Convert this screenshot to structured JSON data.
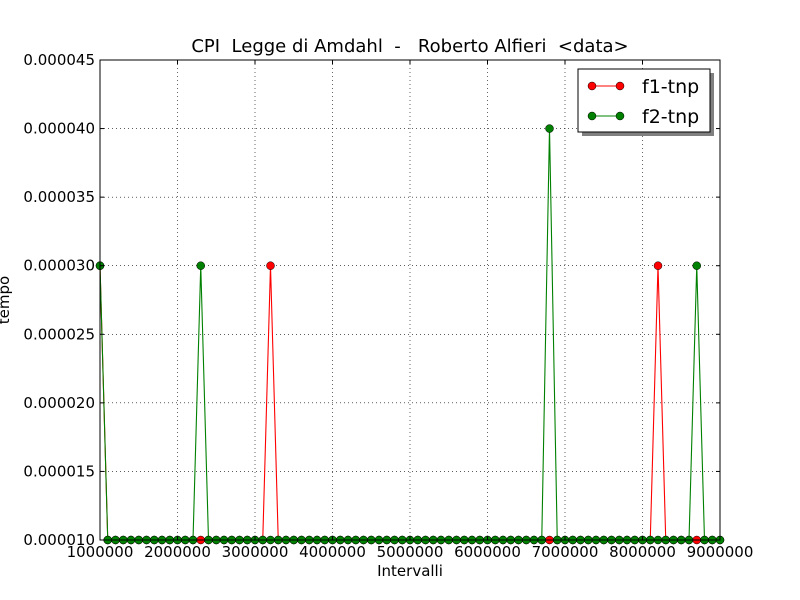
{
  "chart_data": {
    "type": "line",
    "title": "CPI  Legge di Amdahl  -   Roberto Alfieri  <data>",
    "xlabel": "Intervalli",
    "ylabel": "tempo",
    "xlim": [
      1000000,
      9000000
    ],
    "ylim": [
      1e-05,
      4.5e-05
    ],
    "xticks": [
      1000000,
      2000000,
      3000000,
      4000000,
      5000000,
      6000000,
      7000000,
      8000000,
      9000000
    ],
    "xtick_labels": [
      "1000000",
      "2000000",
      "3000000",
      "4000000",
      "5000000",
      "6000000",
      "7000000",
      "8000000",
      "9000000"
    ],
    "yticks": [
      1e-05,
      1.5e-05,
      2e-05,
      2.5e-05,
      3e-05,
      3.5e-05,
      4e-05,
      4.5e-05
    ],
    "ytick_labels": [
      "0.000010",
      "0.000015",
      "0.000020",
      "0.000025",
      "0.000030",
      "0.000035",
      "0.000040",
      "0.000045"
    ],
    "grid": true,
    "legend_position": "top-right",
    "x": [
      1000000,
      1100000,
      1200000,
      1300000,
      1400000,
      1500000,
      1600000,
      1700000,
      1800000,
      1900000,
      2000000,
      2100000,
      2200000,
      2300000,
      2400000,
      2500000,
      2600000,
      2700000,
      2800000,
      2900000,
      3000000,
      3100000,
      3200000,
      3300000,
      3400000,
      3500000,
      3600000,
      3700000,
      3800000,
      3900000,
      4000000,
      4100000,
      4200000,
      4300000,
      4400000,
      4500000,
      4600000,
      4700000,
      4800000,
      4900000,
      5000000,
      5100000,
      5200000,
      5300000,
      5400000,
      5500000,
      5600000,
      5700000,
      5800000,
      5900000,
      6000000,
      6100000,
      6200000,
      6300000,
      6400000,
      6500000,
      6600000,
      6700000,
      6800000,
      6900000,
      7000000,
      7100000,
      7200000,
      7300000,
      7400000,
      7500000,
      7600000,
      7700000,
      7800000,
      7900000,
      8000000,
      8100000,
      8200000,
      8300000,
      8400000,
      8500000,
      8600000,
      8700000,
      8800000,
      8900000,
      9000000
    ],
    "series": [
      {
        "name": "f1-tnp",
        "color": "#ff0000",
        "values": [
          3e-05,
          1e-05,
          1e-05,
          1e-05,
          1e-05,
          1e-05,
          1e-05,
          1e-05,
          1e-05,
          1e-05,
          1e-05,
          1e-05,
          1e-05,
          1e-05,
          1e-05,
          1e-05,
          1e-05,
          1e-05,
          1e-05,
          1e-05,
          1e-05,
          1e-05,
          3e-05,
          1e-05,
          1e-05,
          1e-05,
          1e-05,
          1e-05,
          1e-05,
          1e-05,
          1e-05,
          1e-05,
          1e-05,
          1e-05,
          1e-05,
          1e-05,
          1e-05,
          1e-05,
          1e-05,
          1e-05,
          1e-05,
          1e-05,
          1e-05,
          1e-05,
          1e-05,
          1e-05,
          1e-05,
          1e-05,
          1e-05,
          1e-05,
          1e-05,
          1e-05,
          1e-05,
          1e-05,
          1e-05,
          1e-05,
          1e-05,
          1e-05,
          1e-05,
          1e-05,
          1e-05,
          1e-05,
          1e-05,
          1e-05,
          1e-05,
          1e-05,
          1e-05,
          1e-05,
          1e-05,
          1e-05,
          1e-05,
          1e-05,
          3e-05,
          1e-05,
          1e-05,
          1e-05,
          1e-05,
          1e-05,
          1e-05,
          1e-05,
          1e-05
        ]
      },
      {
        "name": "f2-tnp",
        "color": "#008000",
        "values": [
          3e-05,
          1e-05,
          1e-05,
          1e-05,
          1e-05,
          1e-05,
          1e-05,
          1e-05,
          1e-05,
          1e-05,
          1e-05,
          1e-05,
          1e-05,
          3e-05,
          1e-05,
          1e-05,
          1e-05,
          1e-05,
          1e-05,
          1e-05,
          1e-05,
          1e-05,
          1e-05,
          1e-05,
          1e-05,
          1e-05,
          1e-05,
          1e-05,
          1e-05,
          1e-05,
          1e-05,
          1e-05,
          1e-05,
          1e-05,
          1e-05,
          1e-05,
          1e-05,
          1e-05,
          1e-05,
          1e-05,
          1e-05,
          1e-05,
          1e-05,
          1e-05,
          1e-05,
          1e-05,
          1e-05,
          1e-05,
          1e-05,
          1e-05,
          1e-05,
          1e-05,
          1e-05,
          1e-05,
          1e-05,
          1e-05,
          1e-05,
          1e-05,
          4e-05,
          1e-05,
          1e-05,
          1e-05,
          1e-05,
          1e-05,
          1e-05,
          1e-05,
          1e-05,
          1e-05,
          1e-05,
          1e-05,
          1e-05,
          1e-05,
          1e-05,
          1e-05,
          1e-05,
          1e-05,
          1e-05,
          3e-05,
          1e-05,
          1e-05,
          1e-05
        ]
      }
    ]
  }
}
